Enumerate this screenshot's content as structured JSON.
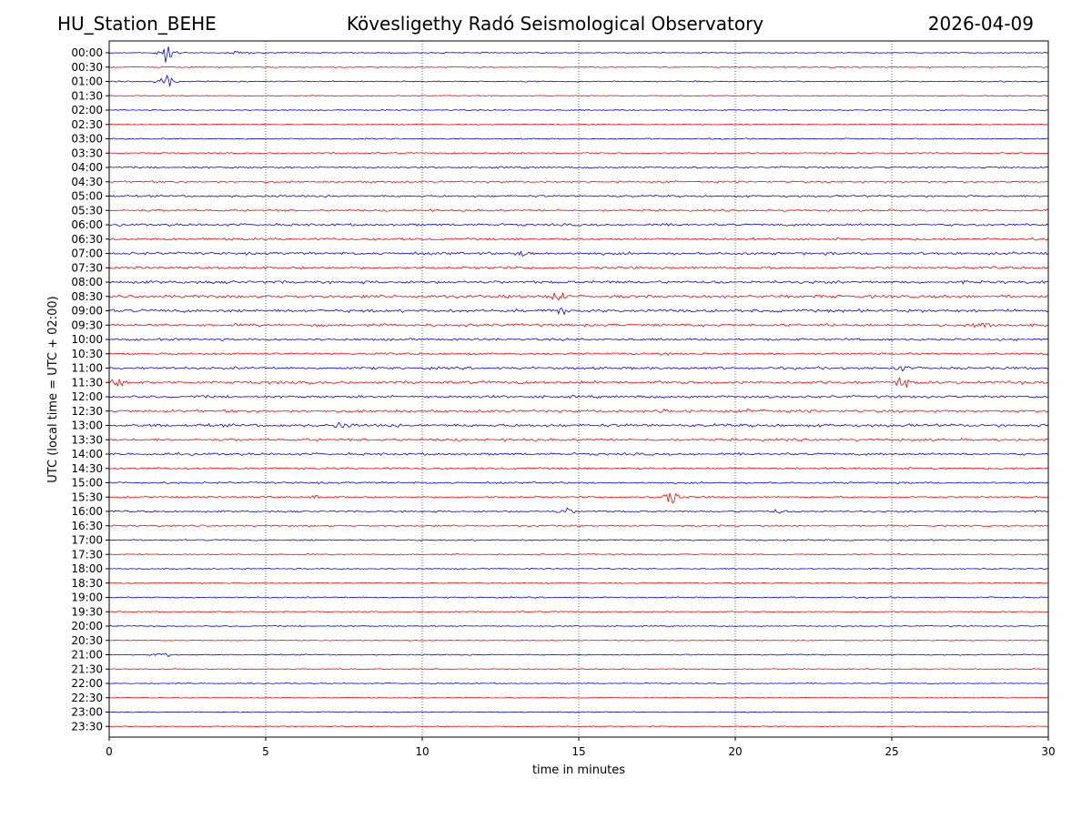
{
  "header": {
    "station": "HU_Station_BEHE",
    "title": "Kövesligethy Radó Seismological Observatory",
    "date": "2026-04-09"
  },
  "chart_data": {
    "type": "line",
    "title": "Kövesligethy Radó Seismological Observatory",
    "xlabel": "time in minutes",
    "ylabel": "UTC (local time = UTC + 02:00)",
    "xlim": [
      0,
      30
    ],
    "xticks": [
      "0",
      "5",
      "10",
      "15",
      "20",
      "25",
      "30"
    ],
    "xtick_values": [
      0,
      5,
      10,
      15,
      20,
      25,
      30
    ],
    "grid": "vertical dotted",
    "colors": {
      "even_rows": "#0000ff",
      "odd_rows": "#ff0000"
    },
    "rows": [
      {
        "label": "00:00",
        "level": 0.8,
        "events": [
          {
            "x": 1.85,
            "amp": 14
          },
          {
            "x": 4.2,
            "amp": 3
          }
        ]
      },
      {
        "label": "00:30",
        "level": 0.9,
        "events": []
      },
      {
        "label": "01:00",
        "level": 0.9,
        "events": [
          {
            "x": 1.85,
            "amp": 8
          }
        ]
      },
      {
        "label": "01:30",
        "level": 0.7,
        "events": []
      },
      {
        "label": "02:00",
        "level": 0.9,
        "events": []
      },
      {
        "label": "02:30",
        "level": 0.8,
        "events": []
      },
      {
        "label": "03:00",
        "level": 0.9,
        "events": []
      },
      {
        "label": "03:30",
        "level": 1.0,
        "events": []
      },
      {
        "label": "04:00",
        "level": 1.3,
        "events": []
      },
      {
        "label": "04:30",
        "level": 1.3,
        "events": []
      },
      {
        "label": "05:00",
        "level": 1.5,
        "events": []
      },
      {
        "label": "05:30",
        "level": 1.5,
        "events": []
      },
      {
        "label": "06:00",
        "level": 1.8,
        "events": []
      },
      {
        "label": "06:30",
        "level": 1.8,
        "events": []
      },
      {
        "label": "07:00",
        "level": 2.0,
        "events": [
          {
            "x": 13.3,
            "amp": 4
          }
        ]
      },
      {
        "label": "07:30",
        "level": 1.8,
        "events": []
      },
      {
        "label": "08:00",
        "level": 2.1,
        "events": []
      },
      {
        "label": "08:30",
        "level": 2.2,
        "events": [
          {
            "x": 14.3,
            "amp": 6
          }
        ]
      },
      {
        "label": "09:00",
        "level": 2.2,
        "events": [
          {
            "x": 14.4,
            "amp": 5
          }
        ]
      },
      {
        "label": "09:30",
        "level": 2.0,
        "events": [
          {
            "x": 27.9,
            "amp": 5
          }
        ]
      },
      {
        "label": "10:00",
        "level": 1.7,
        "events": []
      },
      {
        "label": "10:30",
        "level": 1.6,
        "events": []
      },
      {
        "label": "11:00",
        "level": 1.9,
        "events": [
          {
            "x": 25.3,
            "amp": 4
          }
        ]
      },
      {
        "label": "11:30",
        "level": 2.2,
        "events": [
          {
            "x": 0.2,
            "amp": 6
          },
          {
            "x": 25.3,
            "amp": 6
          }
        ]
      },
      {
        "label": "12:00",
        "level": 1.9,
        "events": []
      },
      {
        "label": "12:30",
        "level": 1.9,
        "events": [
          {
            "x": 20.7,
            "amp": 4
          },
          {
            "x": 17.8,
            "amp": 3
          }
        ]
      },
      {
        "label": "13:00",
        "level": 2.2,
        "events": [
          {
            "x": 7.4,
            "amp": 4
          }
        ]
      },
      {
        "label": "13:30",
        "level": 1.8,
        "events": []
      },
      {
        "label": "14:00",
        "level": 1.8,
        "events": []
      },
      {
        "label": "14:30",
        "level": 1.5,
        "events": []
      },
      {
        "label": "15:00",
        "level": 1.4,
        "events": []
      },
      {
        "label": "15:30",
        "level": 1.3,
        "events": [
          {
            "x": 17.95,
            "amp": 10
          },
          {
            "x": 6.6,
            "amp": 2.5
          }
        ]
      },
      {
        "label": "16:00",
        "level": 1.3,
        "events": [
          {
            "x": 14.6,
            "amp": 4
          },
          {
            "x": 21.3,
            "amp": 3
          }
        ]
      },
      {
        "label": "16:30",
        "level": 1.2,
        "events": []
      },
      {
        "label": "17:00",
        "level": 1.1,
        "events": []
      },
      {
        "label": "17:30",
        "level": 1.0,
        "events": []
      },
      {
        "label": "18:00",
        "level": 1.0,
        "events": []
      },
      {
        "label": "18:30",
        "level": 0.9,
        "events": []
      },
      {
        "label": "19:00",
        "level": 1.0,
        "events": []
      },
      {
        "label": "19:30",
        "level": 0.8,
        "events": []
      },
      {
        "label": "20:00",
        "level": 0.8,
        "events": []
      },
      {
        "label": "20:30",
        "level": 0.6,
        "events": []
      },
      {
        "label": "21:00",
        "level": 0.9,
        "events": [
          {
            "x": 1.7,
            "amp": 3
          }
        ]
      },
      {
        "label": "21:30",
        "level": 0.8,
        "events": []
      },
      {
        "label": "22:00",
        "level": 0.8,
        "events": []
      },
      {
        "label": "22:30",
        "level": 0.6,
        "events": []
      },
      {
        "label": "23:00",
        "level": 0.7,
        "events": []
      },
      {
        "label": "23:30",
        "level": 0.7,
        "events": []
      }
    ]
  }
}
